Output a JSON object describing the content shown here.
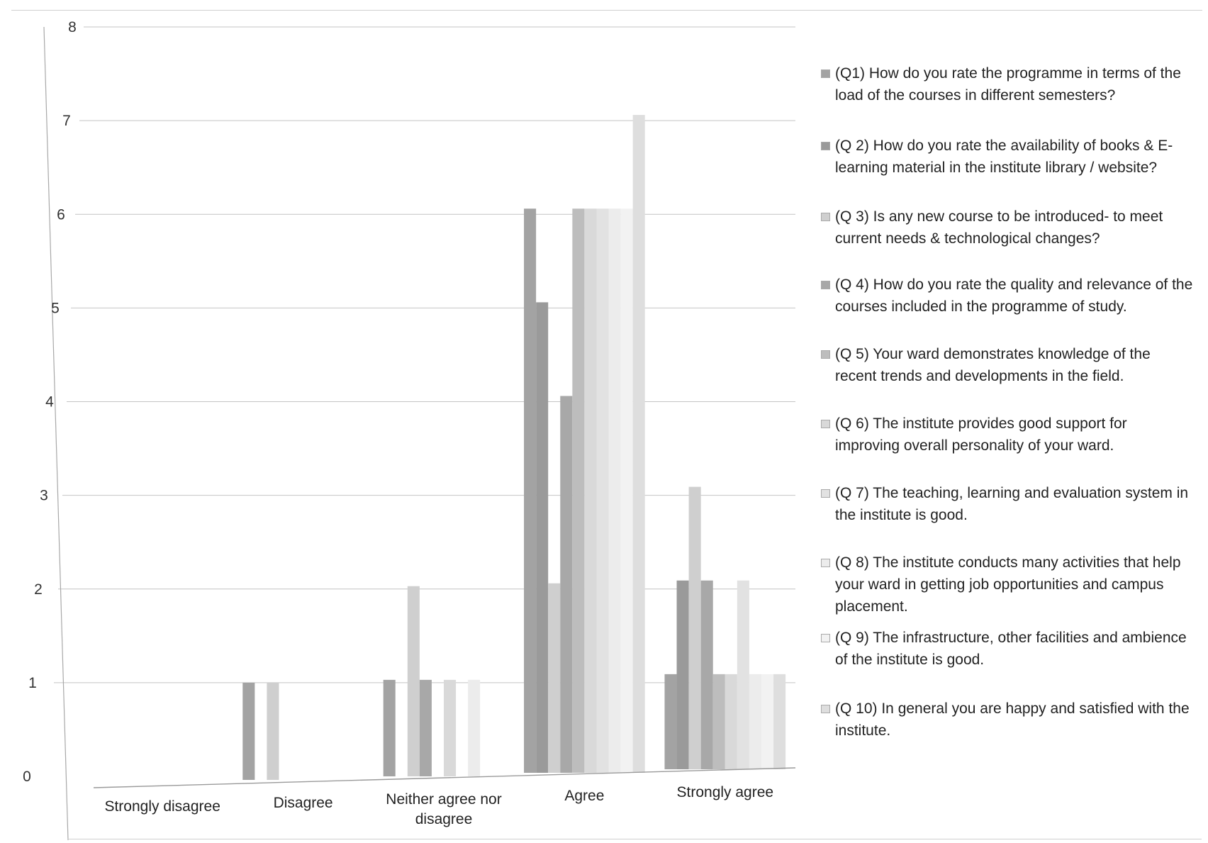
{
  "chart_data": {
    "type": "bar",
    "categories": [
      "Strongly disagree",
      "Disagree",
      "Neither agree nor disagree",
      "Agree",
      "Strongly agree"
    ],
    "category_lines": [
      [
        "Strongly disagree"
      ],
      [
        "Disagree"
      ],
      [
        "Neither agree nor",
        "disagree"
      ],
      [
        "Agree"
      ],
      [
        "Strongly agree"
      ]
    ],
    "series": [
      {
        "name": "(Q1) How do you rate the programme in terms of the load of the courses in different semesters?",
        "lines": [
          "(Q1) How do you rate the programme in terms of the",
          "load of the courses in different semesters?"
        ],
        "values": [
          0,
          1,
          1,
          6,
          1
        ],
        "color": "#a3a3a3"
      },
      {
        "name": "(Q 2) How do you rate the availability of books & E-learning material in the institute library / website?",
        "lines": [
          "(Q 2) How do you rate the availability of books & E-",
          "learning material in the institute library / website?"
        ],
        "values": [
          0,
          0,
          0,
          5,
          2
        ],
        "color": "#9a9a9a"
      },
      {
        "name": "(Q 3) Is any new course to be introduced- to meet current needs & technological changes?",
        "lines": [
          "(Q 3) Is any new course to be introduced- to meet",
          "current needs & technological changes?"
        ],
        "values": [
          0,
          1,
          2,
          2,
          3
        ],
        "color": "#cfcfcf"
      },
      {
        "name": "(Q 4) How do you rate the quality and relevance of the courses included in the programme of study.",
        "lines": [
          "(Q 4) How do you rate the quality and relevance of the",
          "courses included in the programme of study."
        ],
        "values": [
          0,
          0,
          1,
          4,
          2
        ],
        "color": "#a8a8a8"
      },
      {
        "name": "(Q 5) Your ward demonstrates knowledge of the recent trends and developments in the field.",
        "lines": [
          "(Q 5) Your ward demonstrates knowledge of the",
          "recent trends and developments in the field."
        ],
        "values": [
          0,
          0,
          0,
          6,
          1
        ],
        "color": "#bdbdbd"
      },
      {
        "name": "(Q 6) The institute provides good support for improving overall personality of your ward.",
        "lines": [
          "(Q 6) The institute provides good support for",
          "improving overall personality of your ward."
        ],
        "values": [
          0,
          0,
          1,
          6,
          1
        ],
        "color": "#d9d9d9"
      },
      {
        "name": "(Q 7) The teaching, learning and evaluation system in the institute is good.",
        "lines": [
          "(Q 7) The teaching, learning and evaluation system in",
          "the institute is good."
        ],
        "values": [
          0,
          0,
          0,
          6,
          2
        ],
        "color": "#e2e2e2"
      },
      {
        "name": "(Q 8) The institute conducts many activities that help your ward in getting job opportunities and campus placement.",
        "lines": [
          "(Q 8) The institute conducts many activities that help",
          "your ward in getting job opportunities and campus",
          "placement."
        ],
        "values": [
          0,
          0,
          1,
          6,
          1
        ],
        "color": "#ececec"
      },
      {
        "name": "(Q 9) The infrastructure, other facilities and ambience of the institute is good.",
        "lines": [
          "(Q 9) The infrastructure, other facilities and ambience",
          "of the institute is good."
        ],
        "values": [
          0,
          0,
          0,
          6,
          1
        ],
        "color": "#f2f2f2"
      },
      {
        "name": "(Q 10) In general you are happy and satisfied with the institute.",
        "lines": [
          "(Q 10) In general you are happy and satisfied with the",
          "institute."
        ],
        "values": [
          0,
          0,
          0,
          7,
          1
        ],
        "color": "#dedede"
      }
    ],
    "ylim": [
      0,
      8
    ],
    "yticks": [
      0,
      1,
      2,
      3,
      4,
      5,
      6,
      7,
      8
    ],
    "grid": true,
    "legend": "right"
  }
}
